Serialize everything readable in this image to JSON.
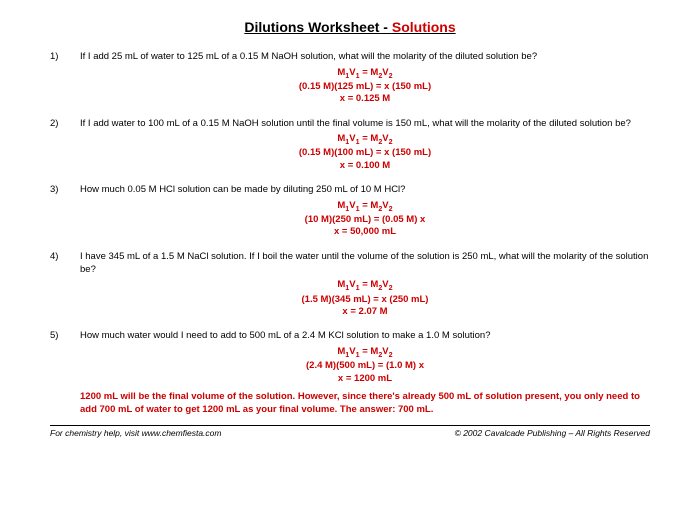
{
  "title_main": "Dilutions Worksheet",
  "title_sep": " - ",
  "title_solutions": "Solutions",
  "problems": [
    {
      "n": "1)",
      "q": "If I add 25 mL of water to 125 mL of a 0.15 M NaOH solution, what will the molarity of the diluted solution be?",
      "a1": "M₁V₁ = M₂V₂",
      "a2": "(0.15 M)(125 mL) = x (150 mL)",
      "a3": "x = 0.125 M"
    },
    {
      "n": "2)",
      "q": "If I add water to 100 mL of a 0.15 M NaOH solution until the final volume is 150 mL, what will the molarity of the diluted solution be?",
      "a1": "M₁V₁ = M₂V₂",
      "a2": "(0.15 M)(100 mL) = x (150 mL)",
      "a3": "x = 0.100 M"
    },
    {
      "n": "3)",
      "q": "How much 0.05 M HCl solution can be made by diluting 250 mL of 10 M HCl?",
      "a1": "M₁V₁ = M₂V₂",
      "a2": "(10 M)(250 mL) = (0.05 M) x",
      "a3": "x = 50,000 mL"
    },
    {
      "n": "4)",
      "q": "I have 345 mL of a 1.5 M NaCl solution.  If I boil the water until the volume of the solution is 250 mL, what will the molarity of the solution be?",
      "a1": "M₁V₁ = M₂V₂",
      "a2": "(1.5 M)(345 mL) = x (250 mL)",
      "a3": "x = 2.07 M"
    },
    {
      "n": "5)",
      "q": "How much water would I need to add to 500 mL of a 2.4 M KCl solution to make a 1.0 M solution?",
      "a1": "M₁V₁ = M₂V₂",
      "a2": "(2.4 M)(500 mL) = (1.0 M) x",
      "a3": "x = 1200 mL",
      "note": "1200 mL will be the final volume of the solution.  However, since there's already 500 mL of solution present, you only need to add 700 mL of water to get 1200 mL as your final volume.  The answer:  700 mL."
    }
  ],
  "footer_left": "For chemistry help, visit www.chemfiesta.com",
  "footer_right": "© 2002 Cavalcade Publishing – All Rights Reserved"
}
